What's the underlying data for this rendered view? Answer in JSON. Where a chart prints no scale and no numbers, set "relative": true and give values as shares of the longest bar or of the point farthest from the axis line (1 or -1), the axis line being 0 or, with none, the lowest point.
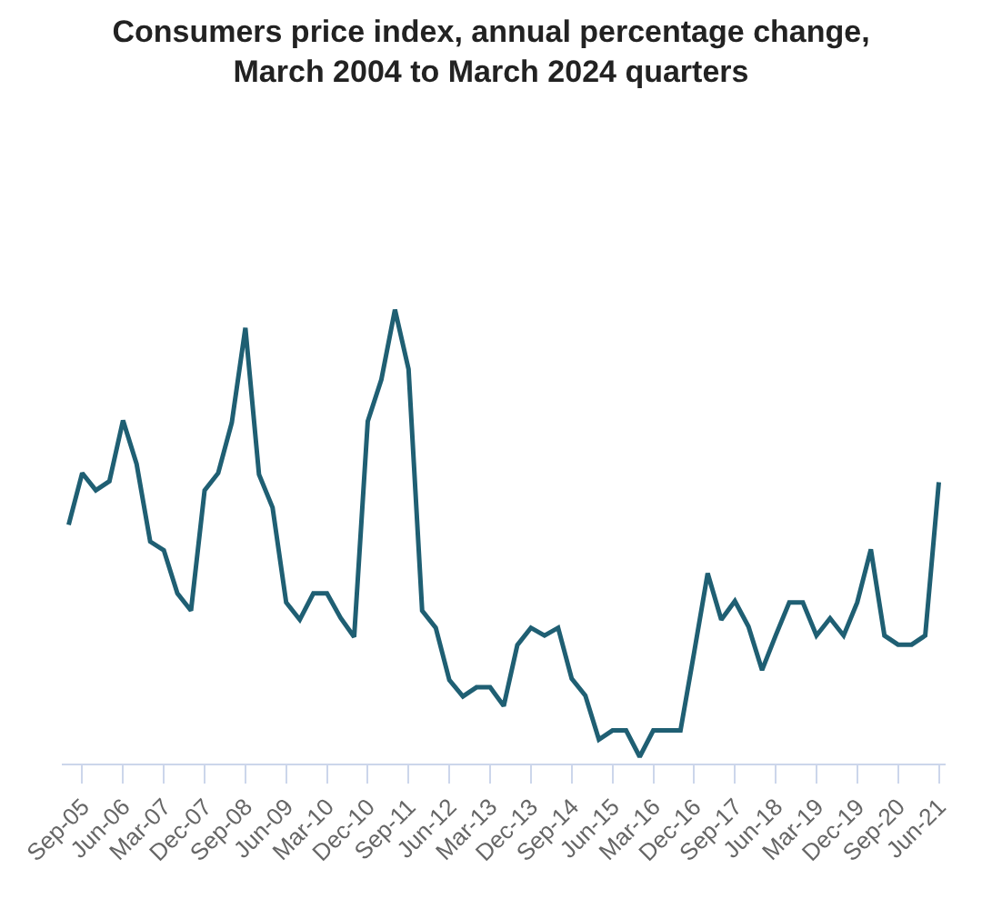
{
  "chart_data": {
    "type": "line",
    "title": "Consumers price index, annual percentage change, March 2004 to March 2024 quarters",
    "relative": true,
    "marker": "none",
    "line_style": "solid",
    "categories": [
      null,
      "Sep-05",
      null,
      null,
      "Jun-06",
      null,
      null,
      "Mar-07",
      null,
      null,
      "Dec-07",
      null,
      null,
      "Sep-08",
      null,
      null,
      "Jun-09",
      null,
      null,
      "Mar-10",
      null,
      null,
      "Dec-10",
      null,
      null,
      "Sep-11",
      null,
      null,
      "Jun-12",
      null,
      null,
      "Mar-13",
      null,
      null,
      "Dec-13",
      null,
      null,
      "Sep-14",
      null,
      null,
      "Jun-15",
      null,
      null,
      "Mar-16",
      null,
      null,
      "Dec-16",
      null,
      null,
      "Sep-17",
      null,
      null,
      "Jun-18",
      null,
      null,
      "Mar-19",
      null,
      null,
      "Dec-19",
      null,
      null,
      "Sep-20",
      null,
      null,
      "Jun-21"
    ],
    "series": [
      {
        "color": "#1f5f73",
        "values": [
          0.526,
          0.64,
          0.602,
          0.622,
          0.756,
          0.66,
          0.489,
          0.47,
          0.375,
          0.337,
          0.602,
          0.64,
          0.751,
          0.96,
          0.637,
          0.564,
          0.355,
          0.317,
          0.375,
          0.375,
          0.321,
          0.279,
          0.754,
          0.846,
          1,
          0.869,
          0.337,
          0.299,
          0.184,
          0.148,
          0.168,
          0.168,
          0.127,
          0.261,
          0.299,
          0.282,
          0.299,
          0.187,
          0.15,
          0.053,
          0.073,
          0.073,
          0.015,
          0.073,
          0.073,
          0.073,
          0.244,
          0.419,
          0.317,
          0.358,
          0.302,
          0.206,
          0.282,
          0.355,
          0.355,
          0.282,
          0.32,
          0.282,
          0.355,
          0.472,
          0.282,
          0.262,
          0.262,
          0.282,
          0.62
        ]
      }
    ]
  }
}
